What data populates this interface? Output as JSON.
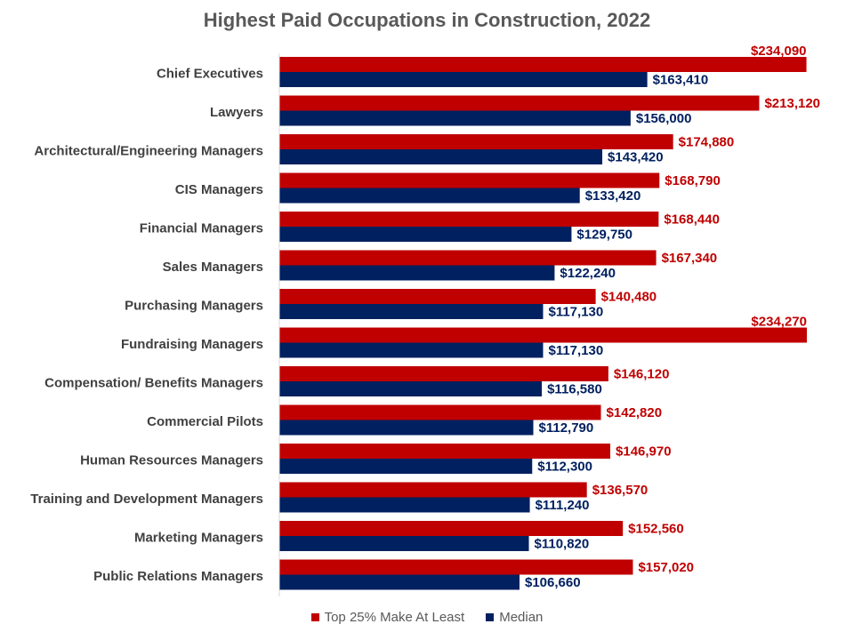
{
  "chart_data": {
    "type": "bar",
    "orientation": "horizontal",
    "title": "Highest Paid Occupations in Construction, 2022",
    "categories": [
      "Chief Executives",
      "Lawyers",
      "Architectural/Engineering Managers",
      "CIS Managers",
      "Financial Managers",
      "Sales Managers",
      "Purchasing Managers",
      "Fundraising Managers",
      "Compensation/ Benefits Managers",
      "Commercial Pilots",
      "Human Resources Managers",
      "Training and Development Managers",
      "Marketing Managers",
      "Public Relations Managers"
    ],
    "series": [
      {
        "name": "Top 25% Make At Least",
        "color": "#C00000",
        "values": [
          234090,
          213120,
          174880,
          168790,
          168440,
          167340,
          140480,
          234270,
          146120,
          142820,
          146970,
          136570,
          152560,
          157020
        ],
        "labels": [
          "$234,090",
          "$213,120",
          "$174,880",
          "$168,790",
          "$168,440",
          "$167,340",
          "$140,480",
          "$234,270",
          "$146,120",
          "$142,820",
          "$146,970",
          "$136,570",
          "$152,560",
          "$157,020"
        ]
      },
      {
        "name": "Median",
        "color": "#002060",
        "values": [
          163410,
          156000,
          143420,
          133420,
          129750,
          122240,
          117130,
          117130,
          116580,
          112790,
          112300,
          111240,
          110820,
          106660
        ],
        "labels": [
          "$163,410",
          "$156,000",
          "$143,420",
          "$133,420",
          "$129,750",
          "$122,240",
          "$117,130",
          "$117,130",
          "$116,580",
          "$112,790",
          "$112,300",
          "$111,240",
          "$110,820",
          "$106,660"
        ]
      }
    ],
    "xlim": [
      0,
      234270
    ],
    "grid": false,
    "legend_position": "bottom"
  }
}
